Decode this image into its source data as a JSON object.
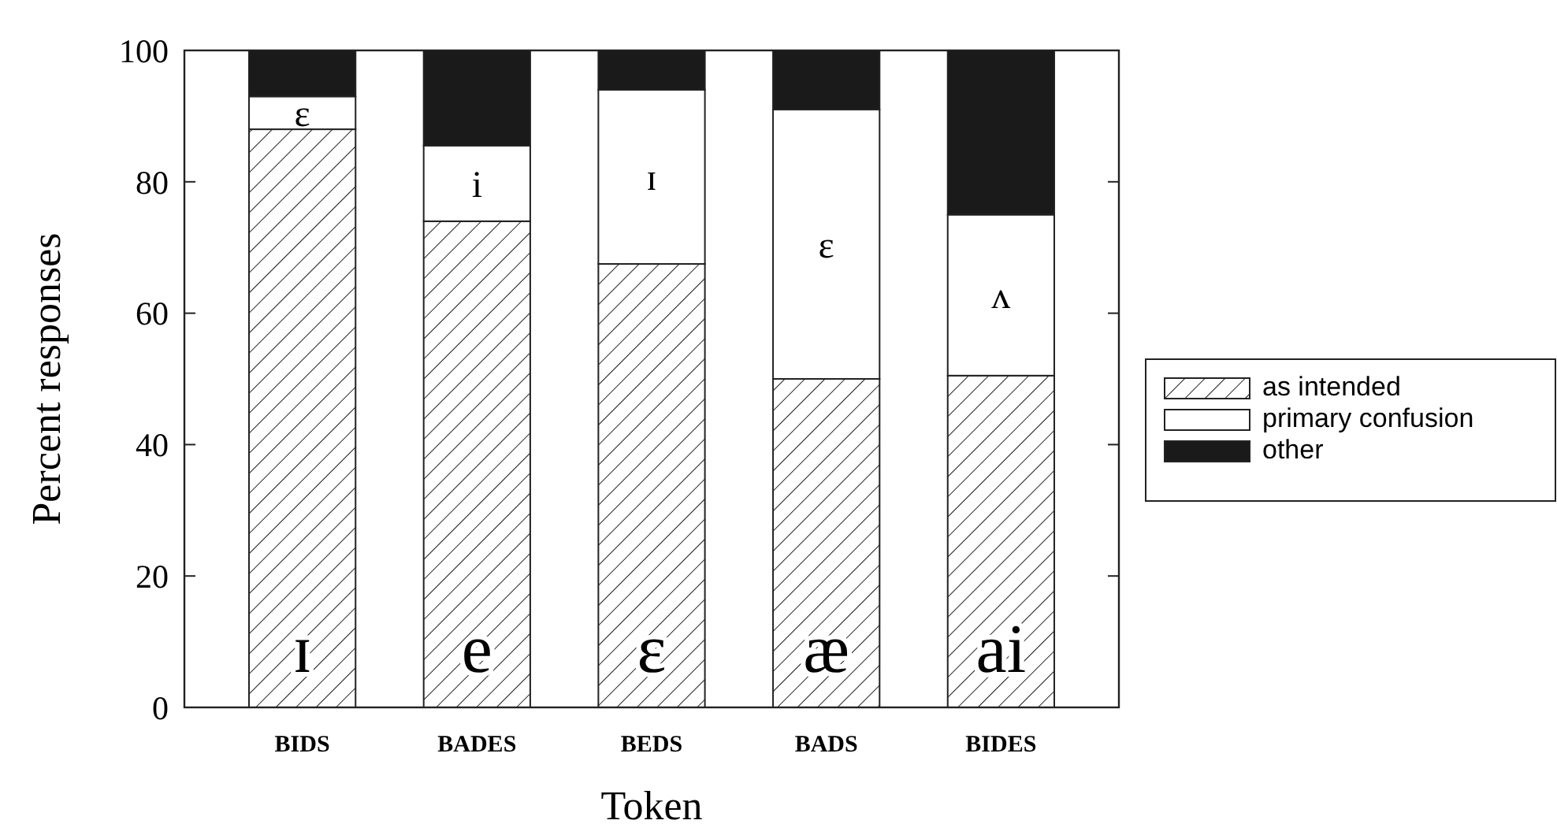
{
  "chart_data": {
    "type": "bar",
    "stacked": true,
    "xlabel": "Token",
    "ylabel": "Percent responses",
    "categories": [
      "BIDS",
      "BADES",
      "BEDS",
      "BADS",
      "BIDES"
    ],
    "series": [
      {
        "name": "as intended",
        "color": "#222222",
        "values": [
          88,
          74,
          67.5,
          50,
          50.5
        ]
      },
      {
        "name": "primary confusion",
        "color": "#ffffff",
        "values": [
          5,
          11.5,
          26.5,
          41,
          24.5
        ]
      },
      {
        "name": "other",
        "color": "#1a1a1a",
        "values": [
          7,
          14.5,
          6,
          9,
          25
        ]
      }
    ],
    "ylim": [
      0,
      100
    ],
    "yticks": [
      0,
      20,
      40,
      60,
      80,
      100
    ],
    "legend": "right",
    "grid": false,
    "annotations": [
      "ɪ",
      "e",
      "ɛ",
      "æ",
      "ai",
      "ɛ",
      "i",
      "ɪ",
      "ɛ",
      "ʌ"
    ]
  }
}
